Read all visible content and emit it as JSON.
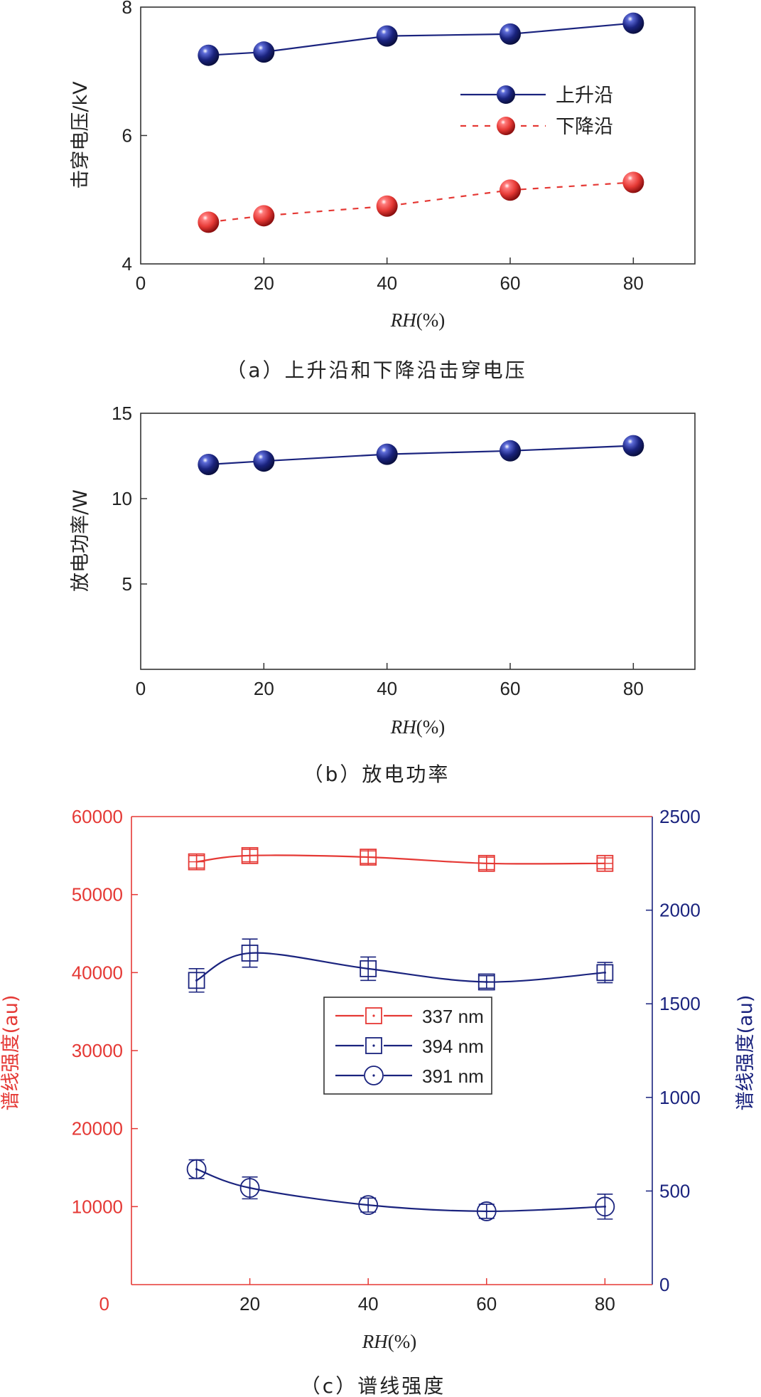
{
  "chart_data": [
    {
      "type": "line",
      "title": "",
      "caption": "（a）上升沿和下降沿击穿电压",
      "xlabel_italic": "RH",
      "xlabel_unit": "(%)",
      "ylabel": "击穿电压/kV",
      "xlim": [
        0,
        90
      ],
      "ylim": [
        4,
        8
      ],
      "xticks": [
        0,
        20,
        40,
        60,
        80
      ],
      "yticks": [
        4,
        6,
        8
      ],
      "legend_position": "center-right",
      "series": [
        {
          "name": "上升沿",
          "color": "#1a237e",
          "dash": false,
          "x": [
            11,
            20,
            40,
            60,
            80
          ],
          "y": [
            7.25,
            7.3,
            7.55,
            7.58,
            7.75
          ]
        },
        {
          "name": "下降沿",
          "color": "#e53935",
          "dash": true,
          "x": [
            11,
            20,
            40,
            60,
            80
          ],
          "y": [
            4.65,
            4.75,
            4.9,
            5.15,
            5.27
          ]
        }
      ]
    },
    {
      "type": "line",
      "title": "",
      "caption": "（b）放电功率",
      "xlabel_italic": "RH",
      "xlabel_unit": "(%)",
      "ylabel": "放电功率/W",
      "xlim": [
        0,
        90
      ],
      "ylim": [
        0,
        15
      ],
      "xticks": [
        0,
        20,
        40,
        60,
        80
      ],
      "yticks": [
        5,
        10,
        15
      ],
      "series": [
        {
          "name": "",
          "color": "#1a237e",
          "dash": false,
          "x": [
            11,
            20,
            40,
            60,
            80
          ],
          "y": [
            12.0,
            12.2,
            12.6,
            12.8,
            13.1
          ]
        }
      ]
    },
    {
      "type": "line",
      "title": "",
      "caption": "（c）谱线强度",
      "xlabel_italic": "RH",
      "xlabel_unit": "(%)",
      "ylabel_left": "谱线强度(au)",
      "ylabel_right": "谱线强度(au)",
      "xlim": [
        0,
        88
      ],
      "ylim_left": [
        0,
        60000
      ],
      "ylim_right": [
        0,
        2500
      ],
      "xticks": [
        0,
        20,
        40,
        60,
        80
      ],
      "yticks_left": [
        0,
        10000,
        20000,
        30000,
        40000,
        50000,
        60000
      ],
      "yticks_right": [
        0,
        500,
        1000,
        1500,
        2000,
        2500
      ],
      "left_color": "#e53935",
      "right_color": "#1a237e",
      "legend_position": "center",
      "series": [
        {
          "name": "337 nm",
          "axis": "left",
          "marker": "boxplus",
          "color": "#e53935",
          "x": [
            11,
            20,
            40,
            60,
            80
          ],
          "y": [
            54200,
            55000,
            54800,
            54000,
            54000
          ],
          "err": [
            800,
            800,
            800,
            800,
            700
          ]
        },
        {
          "name": "394 nm",
          "axis": "left",
          "marker": "square",
          "color": "#1a237e",
          "x": [
            11,
            20,
            40,
            60,
            80
          ],
          "y": [
            39000,
            42500,
            40500,
            38800,
            40000
          ],
          "err": [
            1500,
            1800,
            1500,
            800,
            1300
          ]
        },
        {
          "name": "391 nm",
          "axis": "left",
          "marker": "circle",
          "color": "#1a237e",
          "x": [
            11,
            20,
            40,
            60,
            80
          ],
          "y": [
            14800,
            12400,
            10200,
            9400,
            10000
          ],
          "err": [
            1200,
            1400,
            900,
            900,
            1600
          ]
        }
      ]
    }
  ]
}
